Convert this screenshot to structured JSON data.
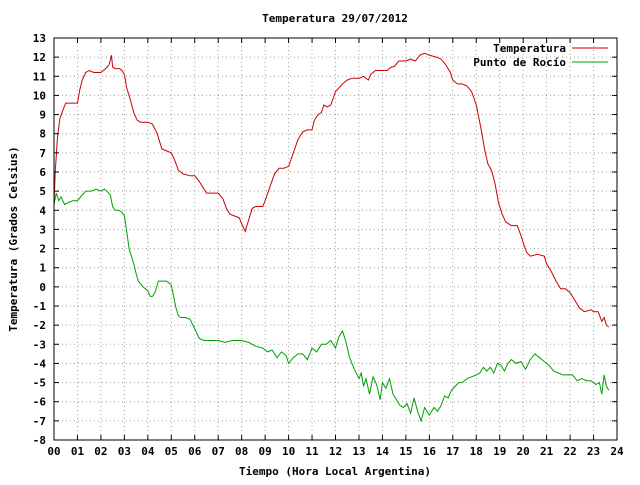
{
  "chart_data": {
    "type": "line",
    "title": "Temperatura 29/07/2012",
    "xlabel": "Tiempo (Hora Local Argentina)",
    "ylabel": "Temperatura (Grados Celsius)",
    "xlim": [
      0,
      24
    ],
    "ylim": [
      -8,
      13
    ],
    "xticks": [
      "00",
      "01",
      "02",
      "03",
      "04",
      "05",
      "06",
      "07",
      "08",
      "09",
      "10",
      "11",
      "12",
      "13",
      "14",
      "15",
      "16",
      "17",
      "18",
      "19",
      "20",
      "21",
      "22",
      "23",
      "24"
    ],
    "yticks": [
      13,
      12,
      11,
      10,
      9,
      8,
      7,
      6,
      5,
      4,
      3,
      2,
      1,
      0,
      -1,
      -2,
      -3,
      -4,
      -5,
      -6,
      -7,
      -8
    ],
    "grid": true,
    "legend_position": "top-right",
    "series": [
      {
        "name": "Temperatura",
        "color": "#cc0000",
        "points": [
          [
            0.0,
            4.3
          ],
          [
            0.05,
            6.0
          ],
          [
            0.15,
            7.8
          ],
          [
            0.25,
            8.8
          ],
          [
            0.4,
            9.3
          ],
          [
            0.5,
            9.6
          ],
          [
            0.75,
            9.6
          ],
          [
            1.0,
            9.6
          ],
          [
            1.1,
            10.3
          ],
          [
            1.2,
            10.8
          ],
          [
            1.35,
            11.2
          ],
          [
            1.5,
            11.3
          ],
          [
            1.7,
            11.2
          ],
          [
            2.0,
            11.2
          ],
          [
            2.2,
            11.4
          ],
          [
            2.35,
            11.6
          ],
          [
            2.45,
            12.1
          ],
          [
            2.5,
            11.5
          ],
          [
            2.6,
            11.4
          ],
          [
            2.8,
            11.4
          ],
          [
            2.9,
            11.3
          ],
          [
            3.0,
            11.1
          ],
          [
            3.1,
            10.4
          ],
          [
            3.25,
            9.8
          ],
          [
            3.4,
            9.1
          ],
          [
            3.55,
            8.7
          ],
          [
            3.7,
            8.6
          ],
          [
            4.0,
            8.6
          ],
          [
            4.2,
            8.5
          ],
          [
            4.4,
            8.0
          ],
          [
            4.6,
            7.2
          ],
          [
            4.8,
            7.1
          ],
          [
            5.0,
            7.0
          ],
          [
            5.15,
            6.6
          ],
          [
            5.3,
            6.1
          ],
          [
            5.5,
            5.9
          ],
          [
            5.8,
            5.8
          ],
          [
            6.0,
            5.8
          ],
          [
            6.2,
            5.5
          ],
          [
            6.5,
            4.9
          ],
          [
            6.8,
            4.9
          ],
          [
            7.0,
            4.9
          ],
          [
            7.2,
            4.6
          ],
          [
            7.35,
            4.1
          ],
          [
            7.5,
            3.8
          ],
          [
            7.7,
            3.7
          ],
          [
            7.9,
            3.6
          ],
          [
            8.0,
            3.3
          ],
          [
            8.15,
            2.9
          ],
          [
            8.3,
            3.5
          ],
          [
            8.45,
            4.1
          ],
          [
            8.6,
            4.2
          ],
          [
            8.9,
            4.2
          ],
          [
            9.0,
            4.5
          ],
          [
            9.2,
            5.2
          ],
          [
            9.4,
            5.9
          ],
          [
            9.6,
            6.2
          ],
          [
            9.8,
            6.2
          ],
          [
            10.0,
            6.3
          ],
          [
            10.2,
            7.0
          ],
          [
            10.4,
            7.7
          ],
          [
            10.6,
            8.1
          ],
          [
            10.8,
            8.2
          ],
          [
            11.0,
            8.2
          ],
          [
            11.1,
            8.7
          ],
          [
            11.25,
            9.0
          ],
          [
            11.4,
            9.1
          ],
          [
            11.5,
            9.5
          ],
          [
            11.65,
            9.4
          ],
          [
            11.8,
            9.5
          ],
          [
            12.0,
            10.2
          ],
          [
            12.15,
            10.4
          ],
          [
            12.3,
            10.6
          ],
          [
            12.5,
            10.8
          ],
          [
            12.7,
            10.9
          ],
          [
            13.0,
            10.9
          ],
          [
            13.2,
            11.0
          ],
          [
            13.4,
            10.8
          ],
          [
            13.5,
            11.1
          ],
          [
            13.7,
            11.3
          ],
          [
            14.0,
            11.3
          ],
          [
            14.2,
            11.3
          ],
          [
            14.4,
            11.5
          ],
          [
            14.5,
            11.5
          ],
          [
            14.7,
            11.8
          ],
          [
            15.0,
            11.8
          ],
          [
            15.2,
            11.9
          ],
          [
            15.4,
            11.8
          ],
          [
            15.6,
            12.1
          ],
          [
            15.8,
            12.2
          ],
          [
            16.0,
            12.1
          ],
          [
            16.3,
            12.0
          ],
          [
            16.5,
            11.9
          ],
          [
            16.7,
            11.6
          ],
          [
            16.9,
            11.2
          ],
          [
            17.0,
            10.8
          ],
          [
            17.2,
            10.6
          ],
          [
            17.4,
            10.6
          ],
          [
            17.6,
            10.5
          ],
          [
            17.8,
            10.2
          ],
          [
            18.0,
            9.5
          ],
          [
            18.2,
            8.3
          ],
          [
            18.35,
            7.2
          ],
          [
            18.5,
            6.4
          ],
          [
            18.65,
            6.1
          ],
          [
            18.8,
            5.4
          ],
          [
            18.95,
            4.4
          ],
          [
            19.1,
            3.8
          ],
          [
            19.25,
            3.4
          ],
          [
            19.5,
            3.2
          ],
          [
            19.75,
            3.2
          ],
          [
            19.9,
            2.7
          ],
          [
            20.0,
            2.3
          ],
          [
            20.15,
            1.8
          ],
          [
            20.3,
            1.6
          ],
          [
            20.6,
            1.7
          ],
          [
            20.9,
            1.6
          ],
          [
            21.0,
            1.2
          ],
          [
            21.2,
            0.8
          ],
          [
            21.4,
            0.3
          ],
          [
            21.6,
            -0.1
          ],
          [
            21.8,
            -0.1
          ],
          [
            22.0,
            -0.3
          ],
          [
            22.2,
            -0.7
          ],
          [
            22.4,
            -1.1
          ],
          [
            22.6,
            -1.3
          ],
          [
            22.9,
            -1.2
          ],
          [
            23.0,
            -1.3
          ],
          [
            23.2,
            -1.3
          ],
          [
            23.35,
            -1.8
          ],
          [
            23.45,
            -1.6
          ],
          [
            23.55,
            -2.0
          ],
          [
            23.65,
            -2.1
          ]
        ]
      },
      {
        "name": "Punto de Rocío",
        "color": "#00a000",
        "points": [
          [
            0.0,
            4.3
          ],
          [
            0.1,
            4.9
          ],
          [
            0.2,
            4.5
          ],
          [
            0.3,
            4.7
          ],
          [
            0.45,
            4.3
          ],
          [
            0.6,
            4.4
          ],
          [
            0.8,
            4.5
          ],
          [
            1.0,
            4.5
          ],
          [
            1.2,
            4.8
          ],
          [
            1.35,
            5.0
          ],
          [
            1.6,
            5.0
          ],
          [
            1.8,
            5.1
          ],
          [
            2.0,
            5.0
          ],
          [
            2.15,
            5.1
          ],
          [
            2.25,
            5.0
          ],
          [
            2.4,
            4.8
          ],
          [
            2.5,
            4.2
          ],
          [
            2.6,
            4.0
          ],
          [
            2.75,
            4.0
          ],
          [
            2.9,
            3.9
          ],
          [
            3.0,
            3.7
          ],
          [
            3.1,
            2.9
          ],
          [
            3.2,
            2.0
          ],
          [
            3.3,
            1.6
          ],
          [
            3.4,
            1.2
          ],
          [
            3.5,
            0.7
          ],
          [
            3.6,
            0.3
          ],
          [
            3.8,
            0.0
          ],
          [
            4.0,
            -0.2
          ],
          [
            4.1,
            -0.5
          ],
          [
            4.2,
            -0.5
          ],
          [
            4.3,
            -0.3
          ],
          [
            4.45,
            0.3
          ],
          [
            4.6,
            0.3
          ],
          [
            4.8,
            0.3
          ],
          [
            5.0,
            0.1
          ],
          [
            5.1,
            -0.5
          ],
          [
            5.2,
            -1.1
          ],
          [
            5.3,
            -1.5
          ],
          [
            5.4,
            -1.6
          ],
          [
            5.6,
            -1.6
          ],
          [
            5.8,
            -1.7
          ],
          [
            6.0,
            -2.2
          ],
          [
            6.2,
            -2.7
          ],
          [
            6.4,
            -2.8
          ],
          [
            6.7,
            -2.8
          ],
          [
            7.0,
            -2.8
          ],
          [
            7.3,
            -2.9
          ],
          [
            7.6,
            -2.8
          ],
          [
            8.0,
            -2.8
          ],
          [
            8.3,
            -2.9
          ],
          [
            8.6,
            -3.1
          ],
          [
            8.9,
            -3.2
          ],
          [
            9.1,
            -3.4
          ],
          [
            9.3,
            -3.3
          ],
          [
            9.5,
            -3.7
          ],
          [
            9.7,
            -3.4
          ],
          [
            9.9,
            -3.6
          ],
          [
            10.0,
            -4.0
          ],
          [
            10.2,
            -3.7
          ],
          [
            10.4,
            -3.5
          ],
          [
            10.6,
            -3.5
          ],
          [
            10.8,
            -3.8
          ],
          [
            11.0,
            -3.2
          ],
          [
            11.2,
            -3.4
          ],
          [
            11.4,
            -3.0
          ],
          [
            11.6,
            -3.0
          ],
          [
            11.8,
            -2.8
          ],
          [
            12.0,
            -3.2
          ],
          [
            12.15,
            -2.6
          ],
          [
            12.3,
            -2.3
          ],
          [
            12.45,
            -2.9
          ],
          [
            12.6,
            -3.7
          ],
          [
            12.8,
            -4.3
          ],
          [
            13.0,
            -4.8
          ],
          [
            13.1,
            -4.5
          ],
          [
            13.2,
            -5.2
          ],
          [
            13.3,
            -4.8
          ],
          [
            13.45,
            -5.6
          ],
          [
            13.6,
            -4.7
          ],
          [
            13.75,
            -5.1
          ],
          [
            13.9,
            -5.9
          ],
          [
            14.0,
            -5.0
          ],
          [
            14.15,
            -5.3
          ],
          [
            14.3,
            -4.8
          ],
          [
            14.45,
            -5.6
          ],
          [
            14.6,
            -5.9
          ],
          [
            14.75,
            -6.2
          ],
          [
            14.9,
            -6.3
          ],
          [
            15.05,
            -6.1
          ],
          [
            15.2,
            -6.6
          ],
          [
            15.35,
            -5.8
          ],
          [
            15.5,
            -6.5
          ],
          [
            15.65,
            -7.0
          ],
          [
            15.8,
            -6.3
          ],
          [
            16.0,
            -6.7
          ],
          [
            16.2,
            -6.3
          ],
          [
            16.35,
            -6.5
          ],
          [
            16.5,
            -6.2
          ],
          [
            16.65,
            -5.7
          ],
          [
            16.8,
            -5.8
          ],
          [
            16.95,
            -5.4
          ],
          [
            17.1,
            -5.2
          ],
          [
            17.25,
            -5.0
          ],
          [
            17.4,
            -5.0
          ],
          [
            17.6,
            -4.8
          ],
          [
            17.8,
            -4.7
          ],
          [
            18.0,
            -4.6
          ],
          [
            18.15,
            -4.5
          ],
          [
            18.3,
            -4.2
          ],
          [
            18.45,
            -4.4
          ],
          [
            18.6,
            -4.2
          ],
          [
            18.75,
            -4.5
          ],
          [
            18.9,
            -4.0
          ],
          [
            19.05,
            -4.1
          ],
          [
            19.2,
            -4.4
          ],
          [
            19.35,
            -4.0
          ],
          [
            19.5,
            -3.8
          ],
          [
            19.7,
            -4.0
          ],
          [
            19.9,
            -3.9
          ],
          [
            20.1,
            -4.3
          ],
          [
            20.3,
            -3.8
          ],
          [
            20.5,
            -3.5
          ],
          [
            20.7,
            -3.7
          ],
          [
            20.9,
            -3.9
          ],
          [
            21.1,
            -4.1
          ],
          [
            21.3,
            -4.4
          ],
          [
            21.5,
            -4.5
          ],
          [
            21.7,
            -4.6
          ],
          [
            21.9,
            -4.6
          ],
          [
            22.1,
            -4.6
          ],
          [
            22.3,
            -4.9
          ],
          [
            22.5,
            -4.8
          ],
          [
            22.7,
            -4.9
          ],
          [
            22.9,
            -4.9
          ],
          [
            23.1,
            -5.1
          ],
          [
            23.25,
            -5.0
          ],
          [
            23.35,
            -5.6
          ],
          [
            23.45,
            -4.6
          ],
          [
            23.55,
            -5.2
          ],
          [
            23.65,
            -5.4
          ]
        ]
      }
    ]
  }
}
